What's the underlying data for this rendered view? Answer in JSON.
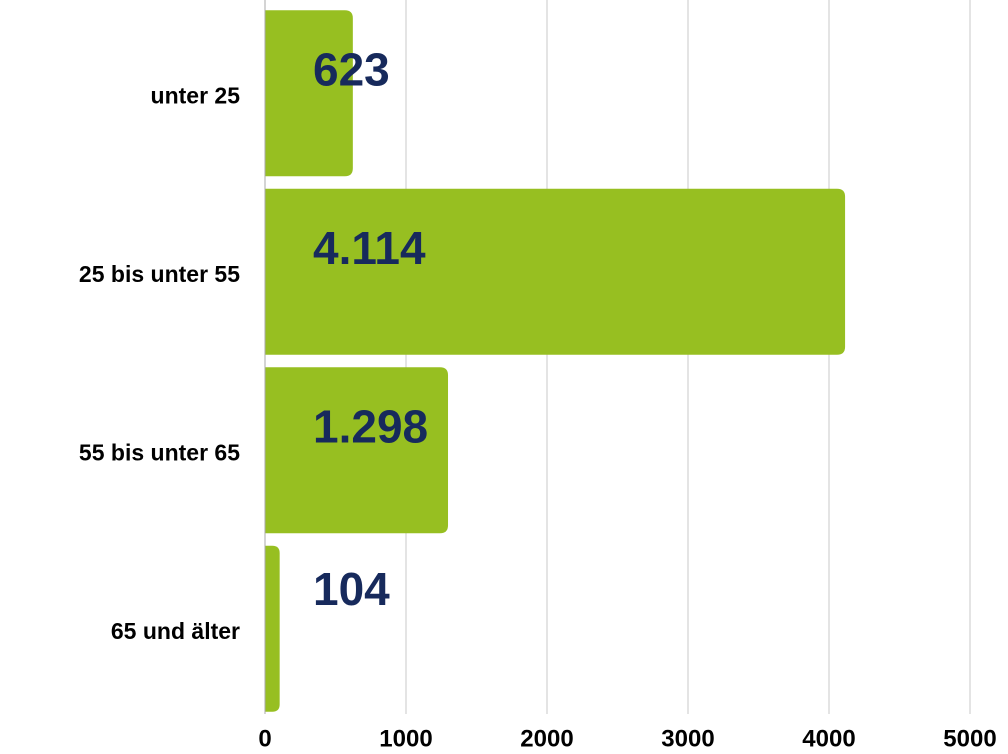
{
  "chart_data": {
    "type": "barh",
    "categories": [
      "unter 25",
      "25 bis unter 55",
      "55 bis unter 65",
      "65 und älter"
    ],
    "values": [
      623,
      4114,
      1298,
      104
    ],
    "value_labels": [
      "623",
      "4.114",
      "1.298",
      "104"
    ],
    "color": "#97bf21",
    "label_color": "#172a5c",
    "xlim": [
      0,
      5000
    ],
    "xticks": [
      0,
      1000,
      2000,
      3000,
      4000,
      5000
    ],
    "grid": true
  }
}
